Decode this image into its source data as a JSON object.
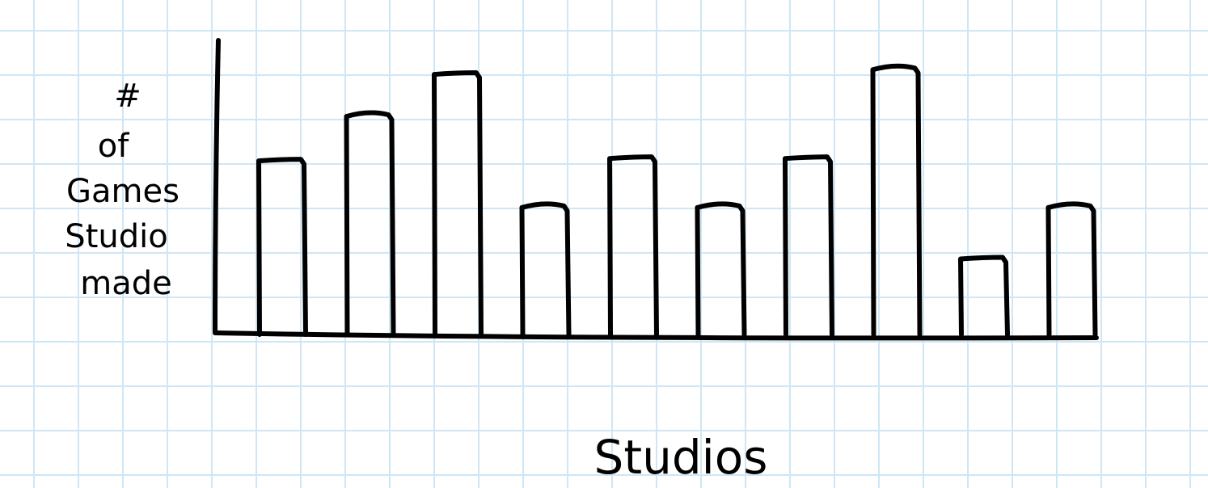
{
  "chart_data": {
    "type": "bar",
    "title": "",
    "xlabel": "Studios",
    "ylabel": "# of Games Studio made",
    "ylabel_lines": [
      "#",
      "of",
      "Games",
      "Studio",
      "made"
    ],
    "categories": [
      "",
      "",
      "",
      "",
      "",
      "",
      "",
      "",
      "",
      "",
      ""
    ],
    "values": [
      7.5,
      9.4,
      11.2,
      5.5,
      7.6,
      5.5,
      7.6,
      11.4,
      3.3,
      5.5,
      0
    ],
    "ylim": [
      0,
      13
    ],
    "grid": true,
    "legend": "none"
  },
  "colors": {
    "grid": "#cfe6f5",
    "ink": "#000000",
    "paper": "#ffffff"
  }
}
